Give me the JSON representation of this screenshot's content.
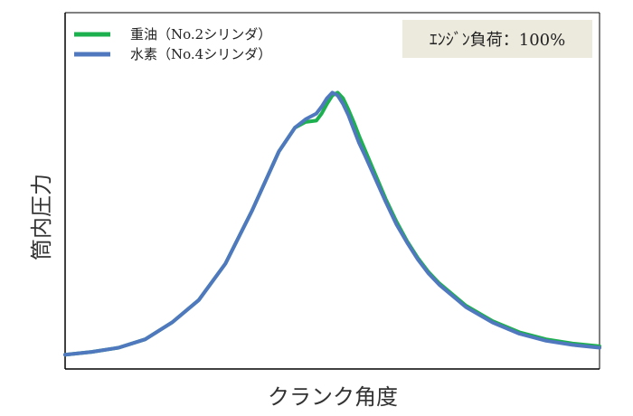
{
  "chart_data": {
    "type": "line",
    "title": "",
    "xlabel": "クランク角度",
    "ylabel": "筒内圧力",
    "x_ticks_shown": false,
    "y_ticks_shown": false,
    "grid": false,
    "legend_position": "top-left",
    "annotation": "ｴﾝｼﾞﾝ負荷：100%",
    "xlim": [
      0,
      100
    ],
    "ylim": [
      0,
      100
    ],
    "x": [
      0,
      5,
      10,
      15,
      20,
      25,
      30,
      35,
      40,
      43,
      45,
      47,
      48,
      49,
      50,
      51,
      52,
      53,
      54,
      55,
      56,
      58,
      60,
      62,
      64,
      66,
      68,
      70,
      75,
      80,
      85,
      90,
      95,
      100
    ],
    "series": [
      {
        "name": "重油（No.2シリンダ）",
        "color": "#1DB04F",
        "values": [
          2.5,
          3.5,
          5.0,
          8.0,
          14.0,
          22.0,
          35.0,
          54.0,
          75.0,
          83.5,
          85.5,
          86.0,
          88.5,
          92.0,
          95.0,
          96.0,
          94.0,
          90.0,
          85.5,
          80.5,
          76.0,
          67.0,
          58.0,
          50.0,
          43.0,
          37.0,
          32.0,
          28.0,
          20.0,
          14.5,
          10.5,
          8.0,
          6.5,
          5.5
        ]
      },
      {
        "name": "水素（No.4シリンダ）",
        "color": "#4F78BE",
        "values": [
          2.5,
          3.5,
          5.0,
          8.0,
          14.0,
          22.0,
          35.0,
          54.0,
          75.0,
          83.5,
          86.5,
          88.5,
          91.0,
          94.0,
          96.0,
          95.0,
          92.0,
          88.0,
          83.0,
          78.0,
          74.0,
          65.5,
          57.0,
          49.0,
          42.5,
          36.5,
          31.5,
          27.5,
          19.5,
          14.0,
          10.0,
          7.5,
          6.0,
          5.0
        ]
      }
    ]
  }
}
